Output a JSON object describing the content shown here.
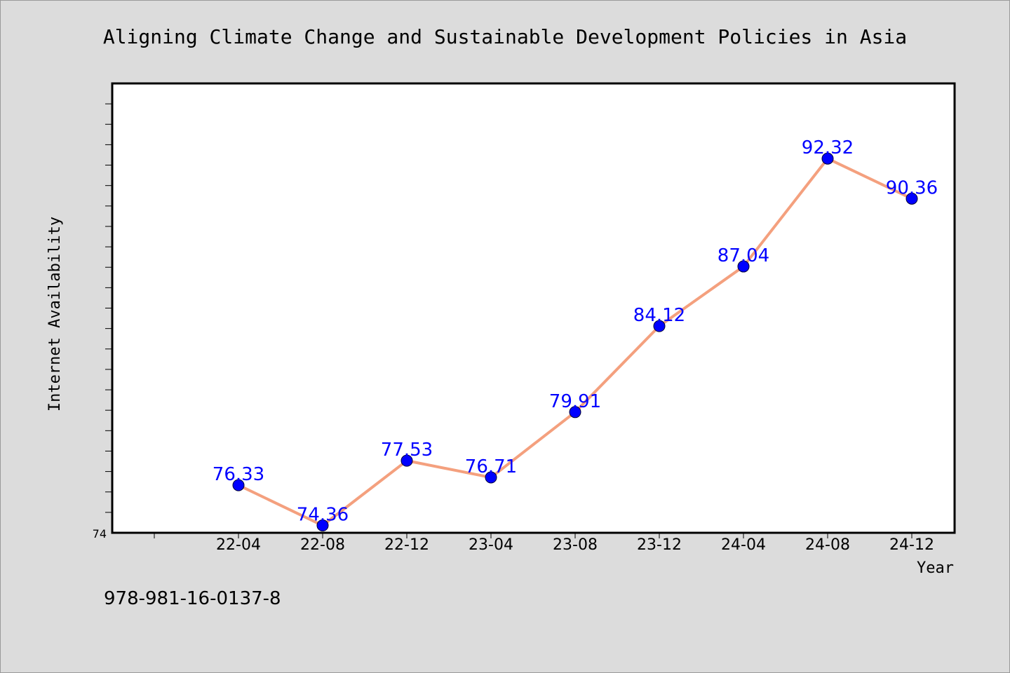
{
  "chart_data": {
    "type": "line",
    "title": "Aligning Climate Change and Sustainable Development Policies in Asia",
    "xlabel": "Year",
    "ylabel": "Internet Availability",
    "categories": [
      "22-04",
      "22-08",
      "22-12",
      "23-04",
      "23-08",
      "23-12",
      "24-04",
      "24-08",
      "24-12"
    ],
    "series": [
      {
        "values": [
          76.33,
          74.36,
          77.53,
          76.71,
          79.91,
          84.12,
          87.04,
          92.32,
          90.36
        ],
        "labels": [
          "76.33",
          "74.36",
          "77.53",
          "76.71",
          "79.91",
          "84.12",
          "87.04",
          "92.32",
          "90.36"
        ],
        "line_color": "#f4a07e",
        "marker_color": "#0000ff"
      }
    ],
    "ylim": [
      74,
      96
    ],
    "y_tick_label": "74",
    "grid": false,
    "legend": "none",
    "plot_background": "#ffffff"
  },
  "footer": {
    "isbn": "978-981-16-0137-8"
  }
}
